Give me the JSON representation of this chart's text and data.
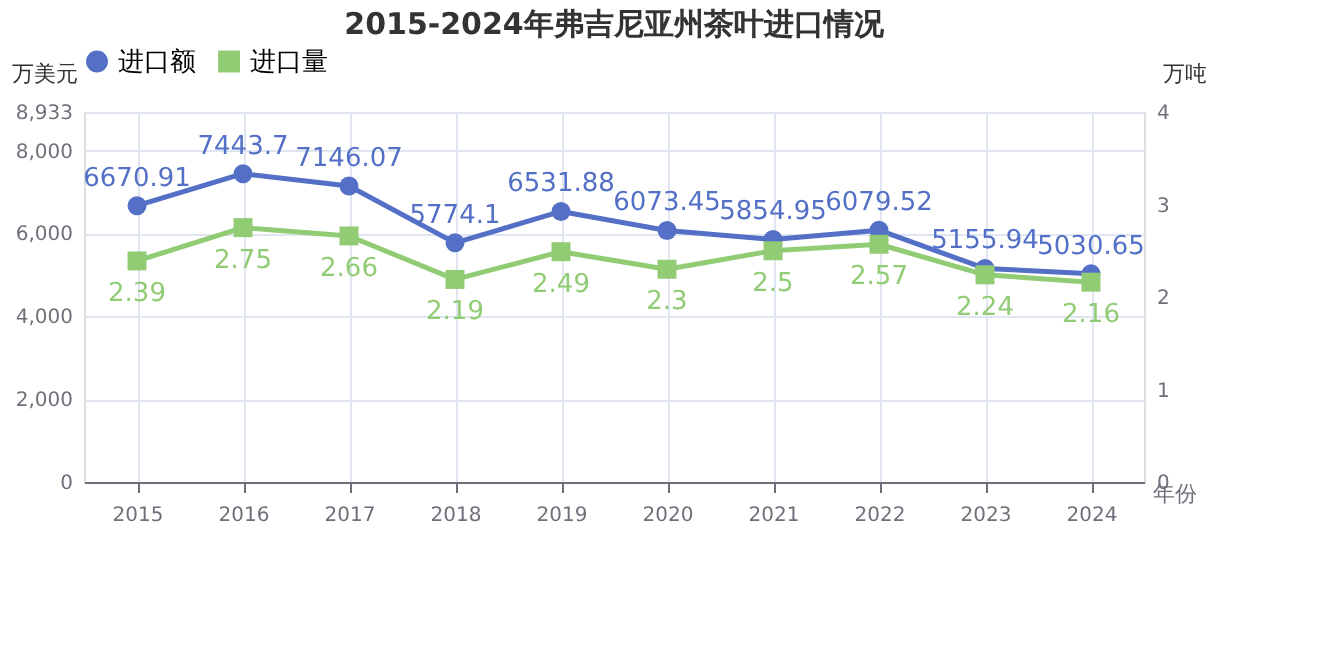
{
  "chart_data": {
    "type": "line",
    "title": "2015-2024年弗吉尼亚州茶叶进口情况",
    "xlabel": "年份",
    "ylabel": "万美元",
    "y2label": "万吨",
    "categories": [
      "2015",
      "2016",
      "2017",
      "2018",
      "2019",
      "2020",
      "2021",
      "2022",
      "2023",
      "2024"
    ],
    "series": [
      {
        "name": "进口额",
        "color": "#5470c6",
        "marker": "circle",
        "values": [
          6670.91,
          7443.7,
          7146.07,
          5774.1,
          6531.88,
          6073.45,
          5854.95,
          6079.52,
          5155.94,
          5030.65
        ]
      },
      {
        "name": "进口量",
        "color": "#91cc75",
        "marker": "square",
        "axis": "y2",
        "values": [
          2.39,
          2.75,
          2.66,
          2.19,
          2.49,
          2.3,
          2.5,
          2.57,
          2.24,
          2.16
        ]
      }
    ],
    "ylim": [
      0,
      8933
    ],
    "yticks": [
      0,
      {
        "value": 2000,
        "label": "2,000"
      },
      {
        "value": 4000,
        "label": "4,000"
      },
      {
        "value": 6000,
        "label": "6,000"
      },
      {
        "value": 8000,
        "label": "8,000"
      },
      {
        "value": 8933,
        "label": "8,933"
      }
    ],
    "y2lim": [
      0,
      4
    ],
    "y2ticks": [
      0,
      1,
      2,
      3,
      4
    ],
    "grid": true,
    "legend": "top",
    "data_labels": true,
    "line_style": "solid"
  }
}
